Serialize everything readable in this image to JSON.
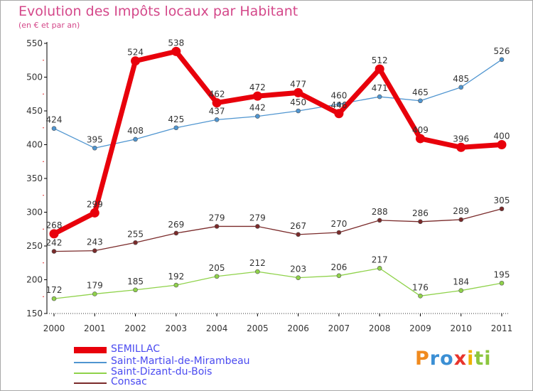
{
  "header": {
    "title": "Evolution des Impôts locaux par Habitant",
    "subtitle": "(en € et par an)"
  },
  "brand": {
    "name": "Proxiti",
    "letters": [
      {
        "ch": "P",
        "color": "#f08a1e"
      },
      {
        "ch": "r",
        "color": "#3b8fd4"
      },
      {
        "ch": "o",
        "color": "#3b8fd4"
      },
      {
        "ch": "x",
        "color": "#e8342c"
      },
      {
        "ch": "i",
        "color": "#f0b000"
      },
      {
        "ch": "t",
        "color": "#8cc63e"
      },
      {
        "ch": "i",
        "color": "#8cc63e"
      }
    ]
  },
  "chart_data": {
    "type": "line",
    "title": "Evolution des Impôts locaux par Habitant",
    "subtitle": "(en € et par an)",
    "xlabel": "",
    "ylabel": "",
    "ylim": [
      150,
      550
    ],
    "yticks": [
      150,
      200,
      250,
      300,
      350,
      400,
      450,
      500,
      550
    ],
    "categories": [
      "2000",
      "2001",
      "2002",
      "2003",
      "2004",
      "2005",
      "2006",
      "2007",
      "2008",
      "2009",
      "2010",
      "2011"
    ],
    "grid": false,
    "legend_position": "bottom-left",
    "series": [
      {
        "name": "SEMILLAC",
        "color": "#e8000b",
        "style": "thick",
        "values": [
          268,
          299,
          524,
          538,
          462,
          472,
          477,
          446,
          512,
          409,
          396,
          400
        ],
        "labels": [
          "268",
          "299",
          "524",
          "538",
          "462",
          "472",
          "477",
          "446",
          "512",
          "409",
          "396",
          "400"
        ]
      },
      {
        "name": "Saint-Martial-de-Mirambeau",
        "color": "#4f95d0",
        "style": "thin",
        "values": [
          424,
          395,
          408,
          425,
          437,
          442,
          450,
          460,
          471,
          465,
          485,
          526
        ],
        "labels": [
          "424",
          "395",
          "408",
          "425",
          "437",
          "442",
          "450",
          "460",
          "471",
          "465",
          "485",
          "526"
        ]
      },
      {
        "name": "Saint-Dizant-du-Bois",
        "color": "#8fd24a",
        "style": "thin",
        "values": [
          172,
          179,
          185,
          192,
          205,
          212,
          203,
          206,
          217,
          176,
          184,
          195
        ],
        "labels": [
          "172",
          "179",
          "185",
          "192",
          "205",
          "212",
          "203",
          "206",
          "217",
          "176",
          "184",
          "195"
        ]
      },
      {
        "name": "Consac",
        "color": "#7a2a2a",
        "style": "thin",
        "values": [
          242,
          243,
          255,
          269,
          279,
          279,
          267,
          270,
          288,
          286,
          289,
          305
        ],
        "labels": [
          "242",
          "243",
          "255",
          "269",
          "279",
          "279",
          "267",
          "270",
          "288",
          "286",
          "289",
          "305"
        ]
      }
    ]
  }
}
